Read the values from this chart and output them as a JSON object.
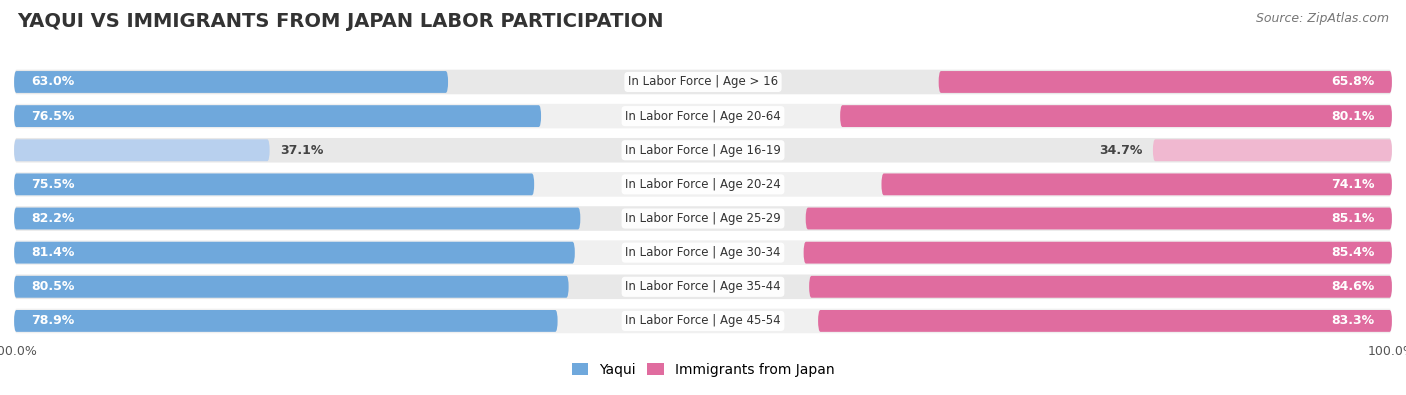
{
  "title": "YAQUI VS IMMIGRANTS FROM JAPAN LABOR PARTICIPATION",
  "source": "Source: ZipAtlas.com",
  "categories": [
    "In Labor Force | Age > 16",
    "In Labor Force | Age 20-64",
    "In Labor Force | Age 16-19",
    "In Labor Force | Age 20-24",
    "In Labor Force | Age 25-29",
    "In Labor Force | Age 30-34",
    "In Labor Force | Age 35-44",
    "In Labor Force | Age 45-54"
  ],
  "yaqui_values": [
    63.0,
    76.5,
    37.1,
    75.5,
    82.2,
    81.4,
    80.5,
    78.9
  ],
  "japan_values": [
    65.8,
    80.1,
    34.7,
    74.1,
    85.1,
    85.4,
    84.6,
    83.3
  ],
  "yaqui_color": "#6fa8dc",
  "japan_color": "#e06c9f",
  "yaqui_light_color": "#b8d0ee",
  "japan_light_color": "#f0b8d0",
  "fig_bg_color": "#ffffff",
  "row_bg_even": "#e8e8e8",
  "row_bg_odd": "#f0f0f0",
  "max_val": 100.0,
  "bar_height": 0.72,
  "title_fontsize": 14,
  "source_fontsize": 9,
  "label_fontsize": 9,
  "category_fontsize": 8.5,
  "legend_fontsize": 10
}
